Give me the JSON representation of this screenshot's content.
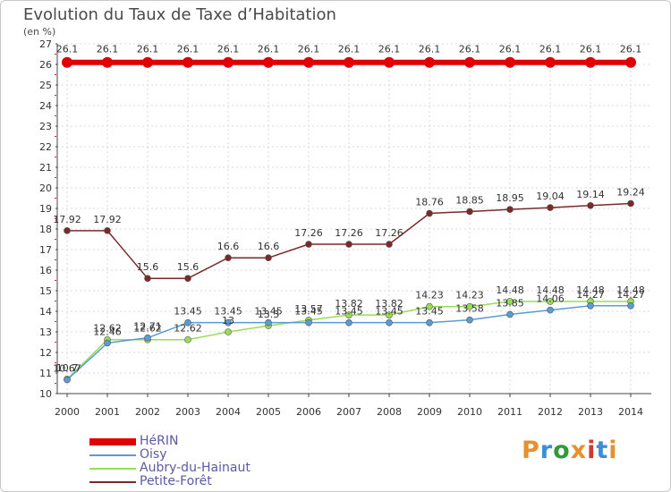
{
  "header": {
    "title": "Evolution du Taux de Taxe d’Habitation",
    "unit": "(en %)"
  },
  "logo": {
    "text": "Proxiti",
    "colors": [
      "#e8912c",
      "#3c8ed8",
      "#2f9a3a",
      "#e8912c",
      "#d43a2c",
      "#3c8ed8",
      "#e8912c"
    ]
  },
  "chart_data": {
    "type": "line",
    "title": "Evolution du Taux de Taxe d’Habitation",
    "ylabel": "(en %)",
    "xlabel": "",
    "x": [
      "2000",
      "2001",
      "2002",
      "2003",
      "2004",
      "2005",
      "2006",
      "2007",
      "2008",
      "2009",
      "2010",
      "2011",
      "2012",
      "2013",
      "2014"
    ],
    "ylim": [
      10,
      27
    ],
    "yticks": [
      "10",
      "11",
      "12",
      "13",
      "14",
      "15",
      "16",
      "17",
      "18",
      "19",
      "20",
      "21",
      "22",
      "23",
      "24",
      "25",
      "26",
      "27"
    ],
    "grid": true,
    "legend_position": "bottom-left",
    "series": [
      {
        "name": "HéRIN",
        "color": "#e00000",
        "values": [
          26.1,
          26.1,
          26.1,
          26.1,
          26.1,
          26.1,
          26.1,
          26.1,
          26.1,
          26.1,
          26.1,
          26.1,
          26.1,
          26.1,
          26.1
        ],
        "labels": [
          "26.1",
          "26.1",
          "26.1",
          "26.1",
          "26.1",
          "26.1",
          "26.1",
          "26.1",
          "26.1",
          "26.1",
          "26.1",
          "26.1",
          "26.1",
          "26.1",
          "26.1"
        ]
      },
      {
        "name": "Oisy",
        "color": "#5b9bd5",
        "values": [
          10.67,
          12.46,
          12.71,
          13.45,
          13.45,
          13.45,
          13.45,
          13.45,
          13.45,
          13.45,
          13.58,
          13.85,
          14.06,
          14.27,
          14.27
        ],
        "labels": [
          "10.67",
          "12.46",
          "12.71",
          "13.45",
          "13.45",
          "13.45",
          "13.45",
          "13.45",
          "13.45",
          "13.45",
          "13.58",
          "13.85",
          "14.06",
          "14.27",
          "14.27"
        ]
      },
      {
        "name": "Aubry-du-Hainaut",
        "color": "#99dd55",
        "values": [
          10.7,
          12.62,
          12.62,
          12.62,
          13.0,
          13.3,
          13.57,
          13.82,
          13.82,
          14.23,
          14.23,
          14.48,
          14.48,
          14.48,
          14.48
        ],
        "labels": [
          "10.7",
          "12.62",
          "12.62",
          "12.62",
          "13",
          "13.3",
          "13.57",
          "13.82",
          "13.82",
          "14.23",
          "14.23",
          "14.48",
          "14.48",
          "14.48",
          "14.48"
        ]
      },
      {
        "name": "Petite-Forêt",
        "color": "#7a2a2a",
        "values": [
          17.92,
          17.92,
          15.6,
          15.6,
          16.6,
          16.6,
          17.26,
          17.26,
          17.26,
          18.76,
          18.85,
          18.95,
          19.04,
          19.14,
          19.24
        ],
        "labels": [
          "17.92",
          "17.92",
          "15.6",
          "15.6",
          "16.6",
          "16.6",
          "17.26",
          "17.26",
          "17.26",
          "18.76",
          "18.85",
          "18.95",
          "19.04",
          "19.14",
          "19.24"
        ]
      }
    ]
  }
}
